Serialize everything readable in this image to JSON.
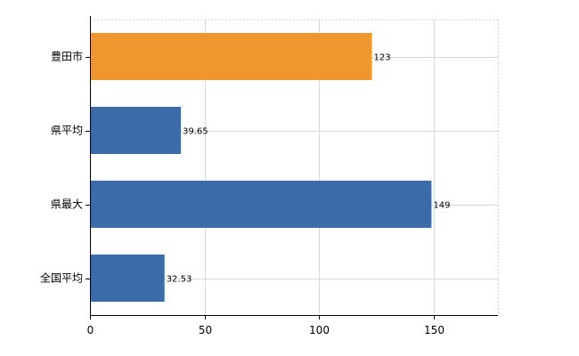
{
  "chart_data": {
    "type": "bar",
    "orientation": "horizontal",
    "categories": [
      "豊田市",
      "県平均",
      "県最大",
      "全国平均"
    ],
    "values": [
      123,
      39.65,
      149,
      32.53
    ],
    "data_labels": [
      "123",
      "39.65",
      "149",
      "32.53"
    ],
    "bar_colors": [
      "#F0962F",
      "#3C6BAA",
      "#3C6BAA",
      "#3C6BAA"
    ],
    "xlim": [
      0,
      178
    ],
    "xticks": [
      0,
      50,
      100,
      150
    ],
    "xtick_labels": [
      "0",
      "50",
      "100",
      "150"
    ],
    "title": "",
    "xlabel": "",
    "ylabel": "",
    "grid": true,
    "legend": "none"
  }
}
